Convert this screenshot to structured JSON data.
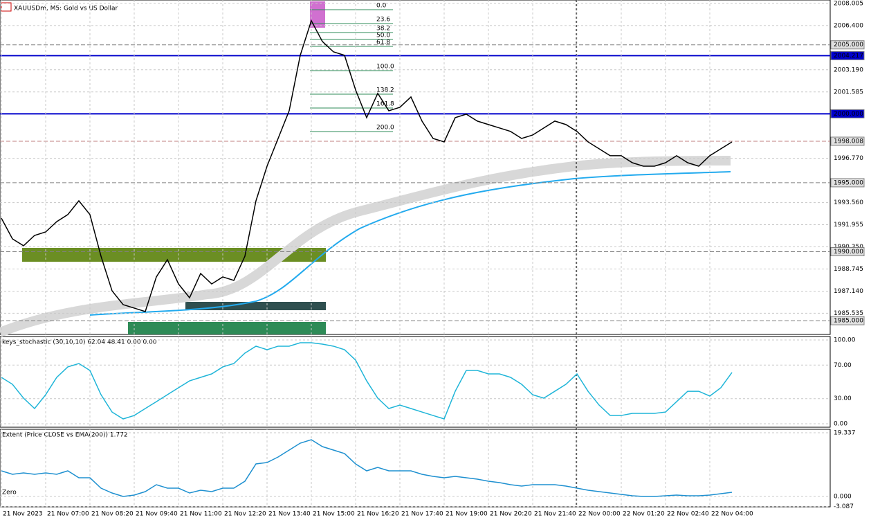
{
  "chart_data": [
    {
      "type": "line",
      "title": "XAUUSDm, M5:  Gold vs US Dollar",
      "categories": [
        "21 Nov 2023",
        null,
        null,
        null,
        "21 Nov 07:00",
        null,
        null,
        null,
        "21 Nov 08:20",
        null,
        null,
        null,
        "21 Nov 09:40",
        null,
        null,
        null,
        "21 Nov 11:00",
        null,
        null,
        null,
        "21 Nov 12:20",
        null,
        null,
        null,
        "21 Nov 13:40",
        null,
        null,
        null,
        "21 Nov 15:00",
        null,
        null,
        null,
        "21 Nov 16:20",
        null,
        null,
        null,
        "21 Nov 17:40",
        null,
        null,
        null,
        "21 Nov 19:00",
        null,
        null,
        null,
        "21 Nov 20:20",
        null,
        null,
        null,
        "21 Nov 21:40",
        null,
        null,
        null,
        "22 Nov 00:00",
        null,
        null,
        null,
        "22 Nov 01:20",
        null,
        null,
        null,
        "22 Nov 02:40",
        null,
        null,
        null,
        "22 Nov 04:00",
        null,
        null
      ],
      "series": [
        {
          "color": "#000000",
          "values": [
            1992.43,
            1990.93,
            1990.43,
            1991.18,
            1991.43,
            1992.18,
            1992.69,
            1993.69,
            1992.69,
            1989.67,
            1987.16,
            1986.16,
            1985.91,
            1985.66,
            1988.17,
            1989.42,
            1987.66,
            1986.66,
            1988.42,
            1987.66,
            1988.17,
            1987.92,
            1989.67,
            1993.69,
            1996.2,
            1998.21,
            2000.22,
            2004.24,
            2006.75,
            2005.24,
            2004.49,
            2004.24,
            2001.73,
            1999.72,
            2001.48,
            2000.22,
            2000.47,
            2001.22,
            1999.47,
            1998.21,
            1997.96,
            1999.72,
            1999.97,
            1999.47,
            1999.22,
            1998.97,
            1998.72,
            1998.21,
            1998.46,
            1998.97,
            1999.47,
            1999.22,
            1998.72,
            1997.96,
            1997.46,
            1996.96,
            1996.96,
            1996.45,
            1996.2,
            1996.2,
            1996.45,
            1996.96,
            1996.45,
            1996.2,
            1996.96,
            1997.46,
            1997.96
          ]
        }
      ],
      "ylim": [
        1984.0,
        2008.25
      ],
      "yticks": [
        {
          "value": 2008.005,
          "label": "2008.005"
        },
        {
          "value": 2006.4,
          "label": "2006.400"
        },
        {
          "value": 2003.19,
          "label": "2003.190"
        },
        {
          "value": 2001.585,
          "label": "2001.585"
        },
        {
          "value": 1996.77,
          "label": "1996.770"
        },
        {
          "value": 1993.56,
          "label": "1993.560"
        },
        {
          "value": 1991.955,
          "label": "1991.955"
        },
        {
          "value": 1990.35,
          "label": "1990.350"
        },
        {
          "value": 1988.745,
          "label": "1988.745"
        },
        {
          "value": 1987.14,
          "label": "1987.140"
        },
        {
          "value": 1985.535,
          "label": "1985.535"
        }
      ],
      "levels": [
        {
          "value": 2005.0,
          "label": "2005.000",
          "color": "#808080"
        },
        {
          "value": 2004.217,
          "label": "2004.217",
          "color": "#0000cc"
        },
        {
          "value": 2000.0,
          "label": "2000.000",
          "color": "#0000cc"
        },
        {
          "value": 1998.008,
          "label": "1998.008",
          "color": "#c08080"
        },
        {
          "value": 1995.0,
          "label": "1995.000",
          "color": "#808080"
        },
        {
          "value": 1990.0,
          "label": "1990.000",
          "color": "#808080"
        },
        {
          "value": 1985.0,
          "label": "1985.000",
          "color": "#808080"
        }
      ],
      "fibonacci": [
        "0.0",
        "23.6",
        "38.2",
        "50.0",
        "61.8",
        "100.0",
        "138.2",
        "161.8",
        "200.0"
      ]
    },
    {
      "type": "line",
      "title": "keys_stochastic (30,10,10) 62.04 48.41 0.00 0.00",
      "series": [
        {
          "color": "#1fb5d8",
          "values": [
            55.4,
            47.1,
            30.6,
            18.2,
            34.7,
            55.4,
            67.8,
            71.9,
            63.6,
            34.7,
            14.0,
            5.8,
            9.9,
            18.2,
            26.4,
            34.7,
            43.0,
            51.2,
            55.4,
            59.5,
            67.8,
            71.9,
            84.3,
            92.6,
            88.4,
            92.6,
            92.6,
            96.7,
            96.7,
            95.0,
            92.6,
            88.4,
            76.0,
            51.2,
            30.6,
            18.2,
            22.3,
            18.2,
            14.0,
            9.9,
            5.8,
            38.8,
            63.6,
            63.6,
            59.5,
            59.5,
            55.4,
            47.1,
            34.7,
            30.6,
            38.8,
            47.1,
            59.5,
            38.8,
            22.3,
            9.9,
            9.9,
            12.4,
            12.4,
            12.4,
            14.0,
            26.4,
            38.8,
            38.8,
            33.1,
            43.0,
            61.2
          ]
        }
      ],
      "ylim": [
        -4.1,
        103.3
      ],
      "yticks": [
        {
          "value": 100,
          "label": "100.00"
        },
        {
          "value": 70,
          "label": "70.00"
        },
        {
          "value": 30,
          "label": "30.00"
        },
        {
          "value": 0,
          "label": "0.00"
        }
      ]
    },
    {
      "type": "line",
      "title": "Extent (Price CLOSE vs EMA(200)) 1.772",
      "annotation": "Zero",
      "series": [
        {
          "color": "#1e90d0",
          "values": [
            7.78,
            6.73,
            7.15,
            6.73,
            7.15,
            6.73,
            7.78,
            5.67,
            5.67,
            2.52,
            1.05,
            0,
            0.42,
            1.47,
            3.57,
            2.52,
            2.52,
            1.05,
            1.89,
            1.47,
            2.52,
            2.52,
            4.62,
            9.88,
            10.3,
            11.98,
            14.08,
            16.18,
            17.23,
            15.13,
            14.08,
            13.03,
            9.88,
            7.78,
            8.83,
            7.78,
            7.78,
            7.78,
            6.73,
            6.1,
            5.67,
            6.1,
            5.67,
            5.25,
            4.62,
            4.2,
            3.57,
            3.15,
            3.57,
            3.57,
            3.57,
            3.15,
            2.52,
            1.89,
            1.47,
            1.05,
            0.63,
            0.21,
            0,
            0,
            0.21,
            0.42,
            0.21,
            0.21,
            0.42,
            0.84,
            1.26
          ]
        }
      ],
      "ylim": [
        -3.15,
        20.18
      ],
      "yticks": [
        {
          "value": 19.337,
          "label": "19.337"
        },
        {
          "value": 0,
          "label": "0.000"
        },
        {
          "value": -3.087,
          "label": "-3.087"
        }
      ]
    }
  ]
}
